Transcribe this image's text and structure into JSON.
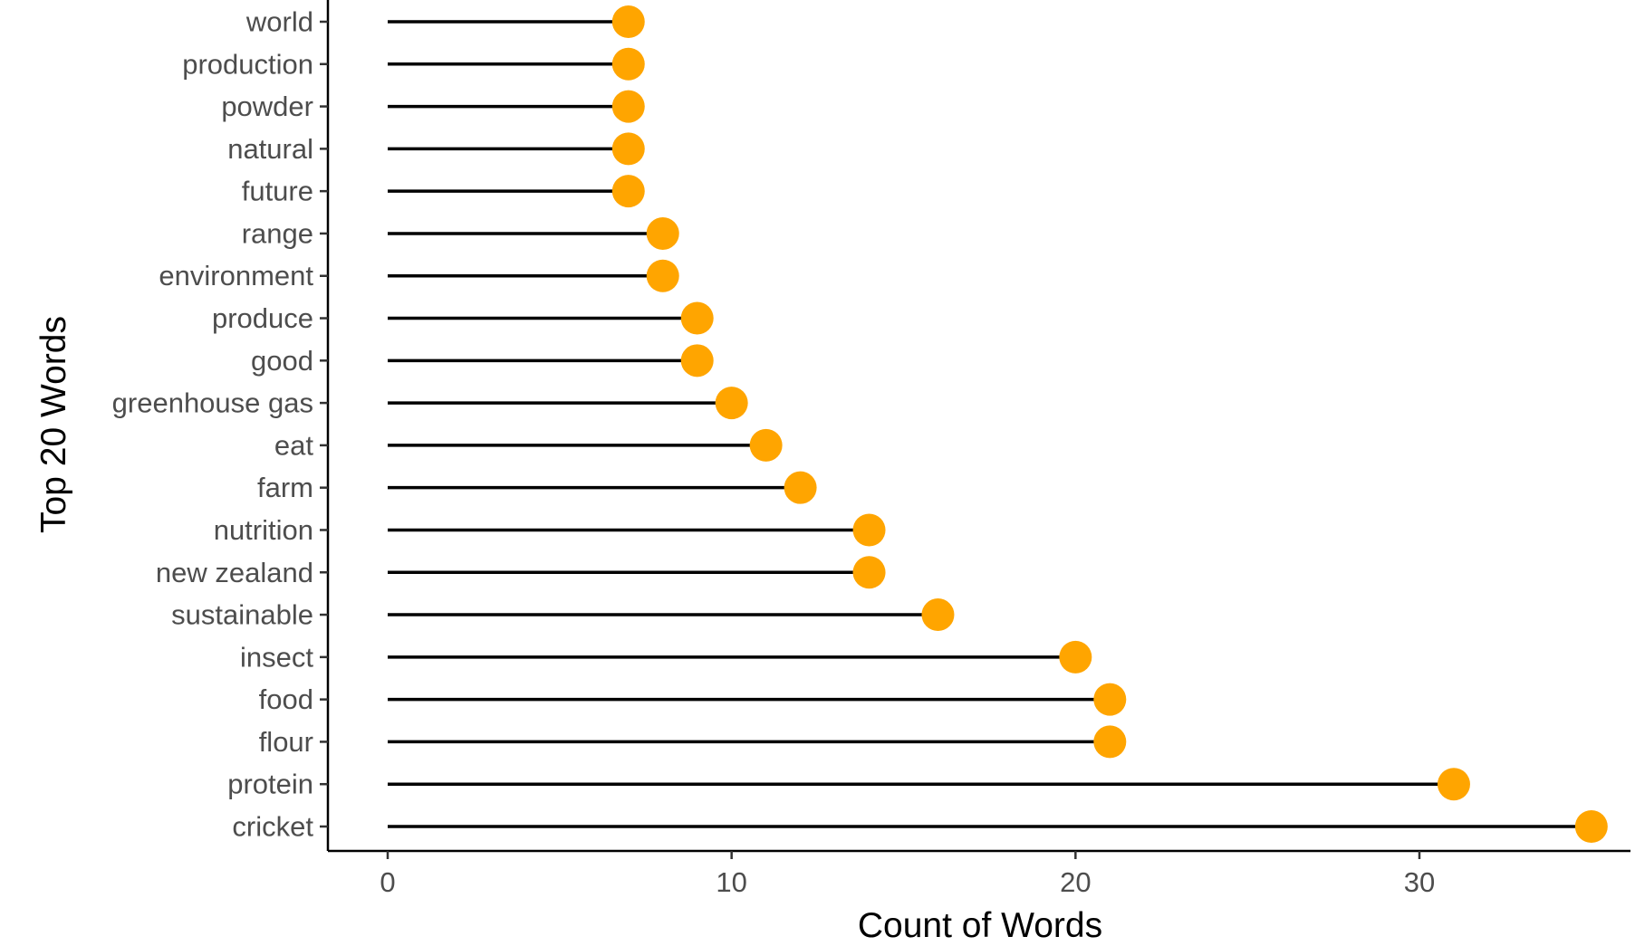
{
  "chart_data": {
    "type": "lollipop",
    "xlabel": "Count of Words",
    "ylabel": "Top 20 Words",
    "xlim": [
      0,
      36
    ],
    "xticks": [
      0,
      10,
      20,
      30
    ],
    "grid": false,
    "point_color": "#FFA500",
    "stem_color": "#000000",
    "categories": [
      "cricket",
      "protein",
      "flour",
      "food",
      "insect",
      "sustainable",
      "new zealand",
      "nutrition",
      "farm",
      "eat",
      "greenhouse gas",
      "good",
      "produce",
      "environment",
      "range",
      "future",
      "natural",
      "powder",
      "production",
      "world"
    ],
    "values": [
      35,
      31,
      21,
      21,
      20,
      16,
      14,
      14,
      12,
      11,
      10,
      9,
      9,
      8,
      8,
      7,
      7,
      7,
      7,
      7
    ]
  }
}
